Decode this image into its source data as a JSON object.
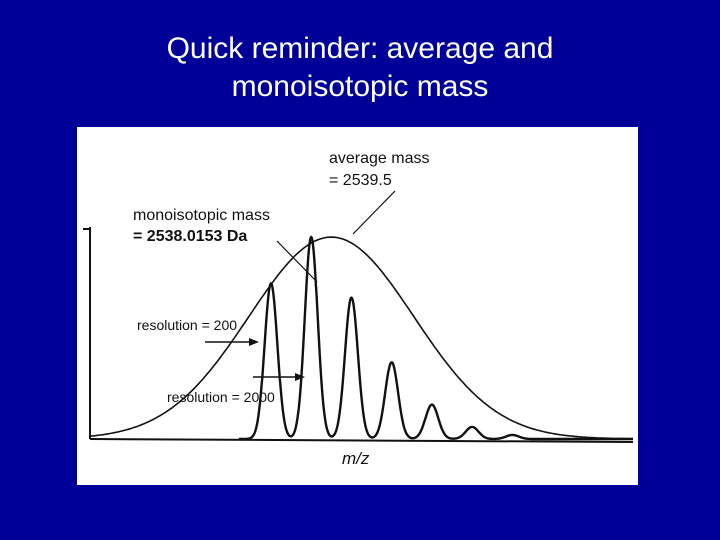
{
  "slide": {
    "title_line1": "Quick reminder: average and",
    "title_line2": "monoisotopic mass",
    "background_color": "#000099",
    "title_color": "#ffffff"
  },
  "chart_data": {
    "type": "line",
    "title": "",
    "xlabel": "m/z",
    "ylabel": "",
    "annotations": {
      "average_mass_line1": "average mass",
      "average_mass_line2": "= 2539.5",
      "monoisotopic_line1": "monoisotopic mass",
      "monoisotopic_line2": "= 2538.0153 Da",
      "resolution_200": "resolution = 200",
      "resolution_2000": "resolution = 2000"
    },
    "series": [
      {
        "name": "resolution = 200",
        "style": "broad envelope",
        "center": 2539.5,
        "height": 1.0
      },
      {
        "name": "resolution = 2000",
        "style": "resolved isotope peaks",
        "peaks": [
          {
            "m": 2538.0,
            "intensity": 0.77
          },
          {
            "m": 2539.0,
            "intensity": 1.0
          },
          {
            "m": 2540.0,
            "intensity": 0.7
          },
          {
            "m": 2541.0,
            "intensity": 0.38
          },
          {
            "m": 2542.0,
            "intensity": 0.17
          },
          {
            "m": 2543.0,
            "intensity": 0.06
          },
          {
            "m": 2544.0,
            "intensity": 0.02
          }
        ]
      }
    ],
    "xlim": [
      2533.5,
      2547.0
    ],
    "ylim": [
      0,
      1.05
    ],
    "grid": false,
    "axis_color": "#111111"
  }
}
